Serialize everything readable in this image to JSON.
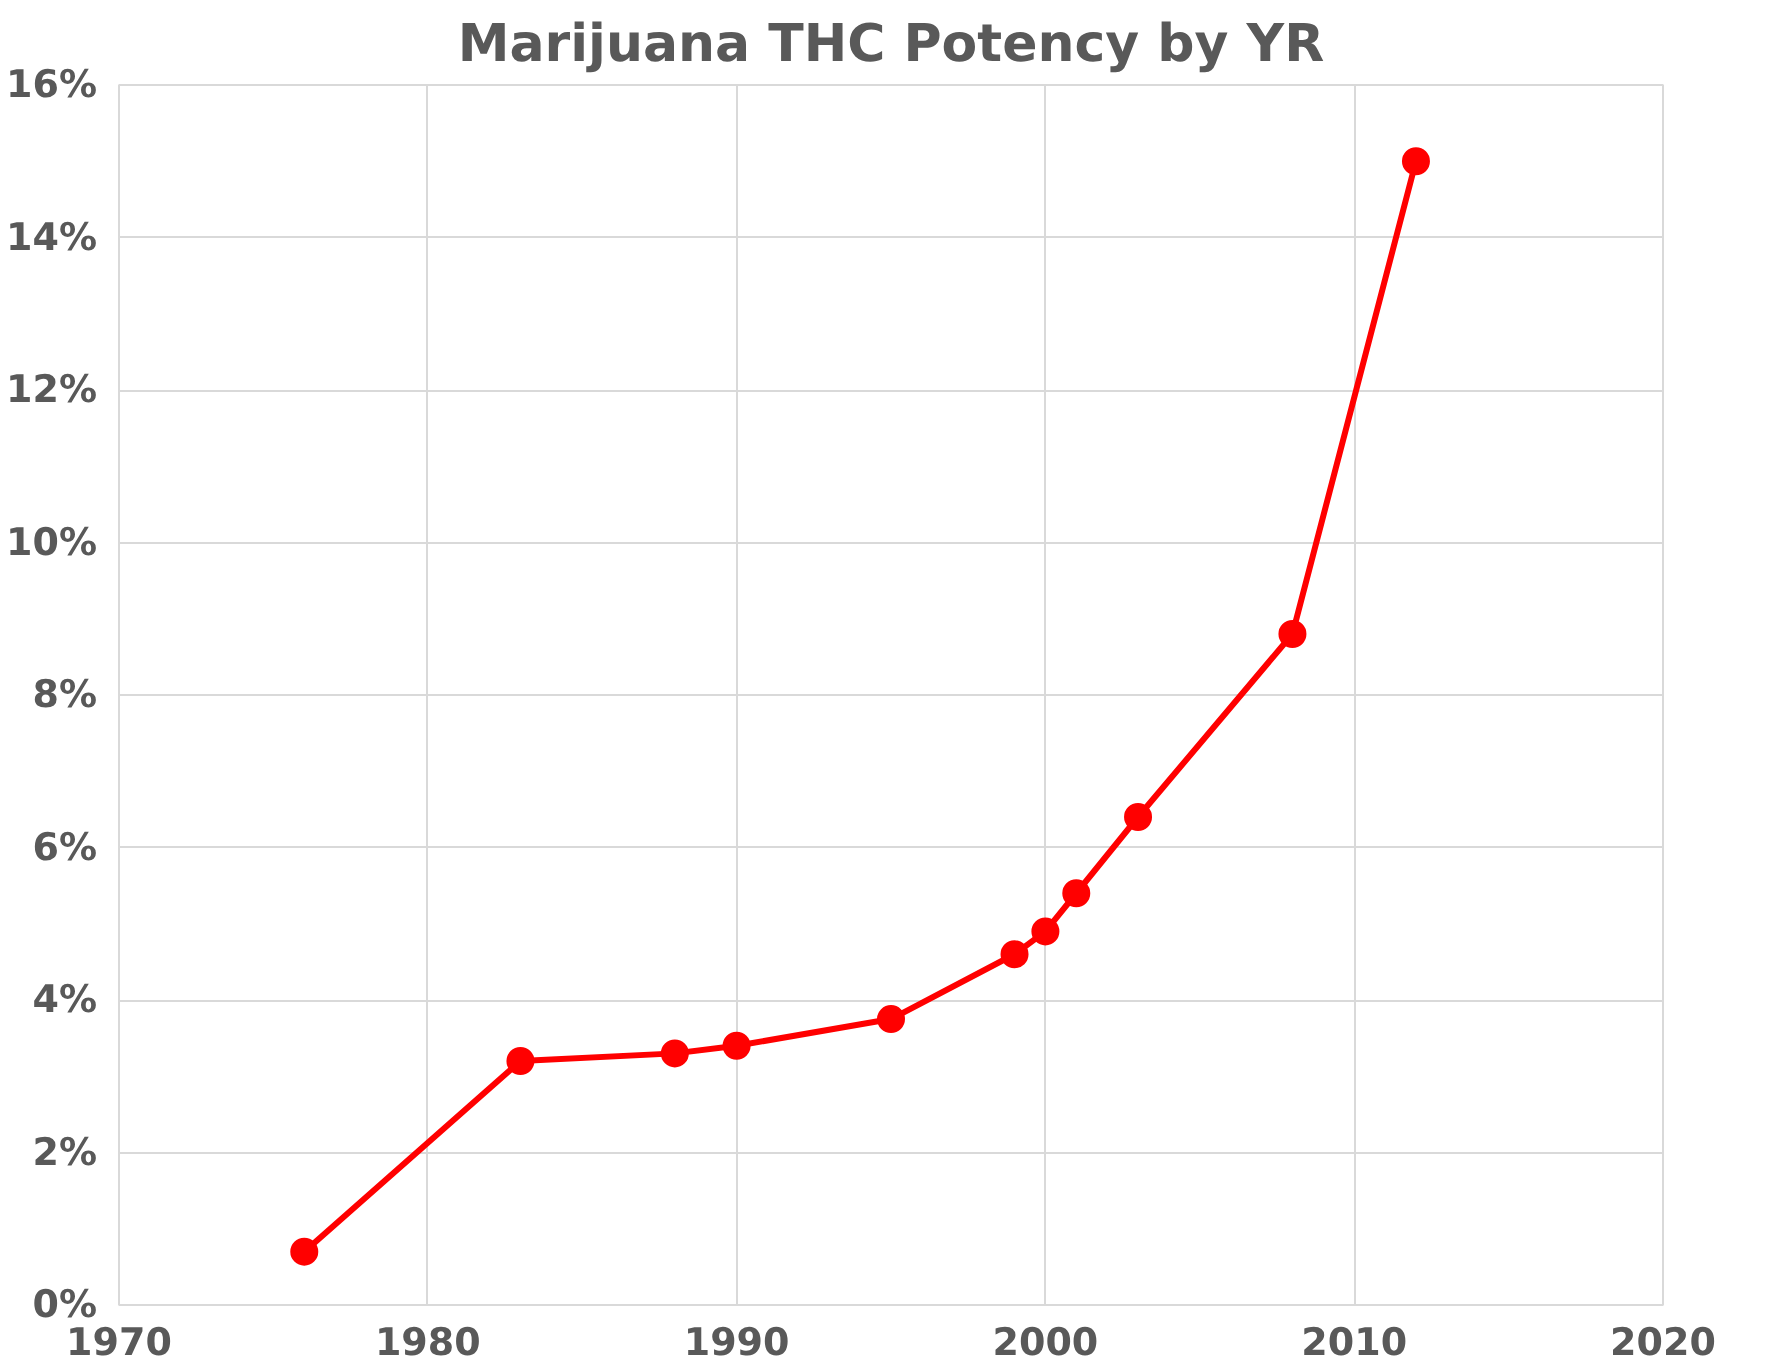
{
  "chart_data": {
    "type": "line",
    "title": "Marijuana THC Potency by YR",
    "x": [
      1976,
      1983,
      1988,
      1990,
      1995,
      1999,
      2000,
      2001,
      2003,
      2008,
      2012
    ],
    "series": [
      {
        "color": "#ff0000",
        "values": [
          0.7,
          3.2,
          3.3,
          3.4,
          3.75,
          4.6,
          4.9,
          5.4,
          6.4,
          8.8,
          15.0
        ]
      }
    ],
    "xlim": [
      1970,
      2020
    ],
    "xticks": [
      1970,
      1980,
      1990,
      2000,
      2010,
      2020
    ],
    "ylim": [
      0,
      16
    ],
    "yticks": [
      {
        "value": 0,
        "label": "0%"
      },
      {
        "value": 2,
        "label": "2%"
      },
      {
        "value": 4,
        "label": "4%"
      },
      {
        "value": 6,
        "label": "6%"
      },
      {
        "value": 8,
        "label": "8%"
      },
      {
        "value": 10,
        "label": "10%"
      },
      {
        "value": 12,
        "label": "12%"
      },
      {
        "value": 14,
        "label": "14%"
      },
      {
        "value": 16,
        "label": "16%"
      }
    ],
    "grid": true,
    "marker": "circle",
    "line_style": "solid"
  }
}
